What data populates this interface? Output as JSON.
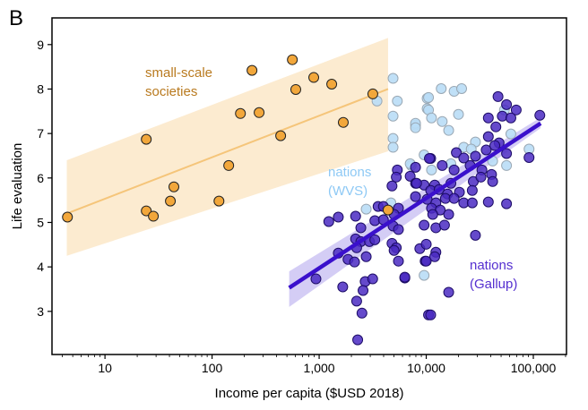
{
  "panel_label": "B",
  "chart_data": {
    "type": "scatter",
    "xlabel": "Income per capita ($USD 2018)",
    "ylabel": "Life evaluation",
    "xscale": "log",
    "xlim": [
      3.2,
      204000
    ],
    "ylim": [
      2.03,
      9.6
    ],
    "xticks": [
      10,
      100,
      1000,
      10000,
      100000
    ],
    "xtick_labels": [
      "10",
      "100",
      "1,000",
      "10,000",
      "100,000"
    ],
    "yticks": [
      3,
      4,
      5,
      6,
      7,
      8,
      9
    ],
    "ytick_labels": [
      "3",
      "4",
      "5",
      "6",
      "7",
      "8",
      "9"
    ],
    "grid": false,
    "series": [
      {
        "name": "small-scale societies",
        "label_lines": [
          "small-scale",
          "societies"
        ],
        "color": "#f2a73b",
        "label_color": "#b97a1f",
        "points": [
          [
            4.46,
            5.12
          ],
          [
            24.3,
            6.87
          ],
          [
            24.3,
            5.26
          ],
          [
            28.3,
            5.14
          ],
          [
            40.8,
            5.48
          ],
          [
            44,
            5.8
          ],
          [
            116,
            5.48
          ],
          [
            143,
            6.28
          ],
          [
            184,
            7.45
          ],
          [
            236,
            8.42
          ],
          [
            275,
            7.47
          ],
          [
            437,
            6.95
          ],
          [
            562,
            8.66
          ],
          [
            605,
            7.99
          ],
          [
            890,
            8.26
          ],
          [
            1310,
            8.11
          ],
          [
            1680,
            7.25
          ],
          [
            3170,
            7.89
          ],
          [
            4400,
            5.28
          ]
        ],
        "fit": {
          "x": [
            4.4,
            4400
          ],
          "y": [
            5.2,
            8.0
          ],
          "lower": [
            4.25,
            6.6
          ],
          "upper": [
            6.4,
            9.15
          ]
        }
      },
      {
        "name": "nations (WVS)",
        "label_lines": [
          "nations",
          "(WVS)"
        ],
        "color": "#b9ddf6",
        "label_color": "#8ec9f5",
        "points": [
          [
            4900,
            8.24
          ],
          [
            5370,
            7.73
          ],
          [
            3470,
            7.73
          ],
          [
            4900,
            7.39
          ],
          [
            4900,
            6.89
          ],
          [
            4900,
            6.69
          ],
          [
            7940,
            7.19
          ],
          [
            9550,
            6.52
          ],
          [
            7240,
            6.28
          ],
          [
            4680,
            5.44
          ],
          [
            2750,
            5.3
          ],
          [
            9550,
            3.81
          ],
          [
            10200,
            7.79
          ],
          [
            10200,
            7.56
          ],
          [
            13800,
            8.01
          ],
          [
            18200,
            7.95
          ],
          [
            21400,
            8.01
          ],
          [
            10500,
            7.81
          ],
          [
            10500,
            7.53
          ],
          [
            11200,
            7.35
          ],
          [
            14100,
            7.27
          ],
          [
            16200,
            7.07
          ],
          [
            20000,
            7.43
          ],
          [
            7940,
            7.23
          ],
          [
            7940,
            7.13
          ],
          [
            28800,
            6.81
          ],
          [
            22400,
            6.69
          ],
          [
            26300,
            6.65
          ],
          [
            7080,
            6.32
          ],
          [
            11200,
            6.18
          ],
          [
            17000,
            6.32
          ],
          [
            56200,
            6.28
          ],
          [
            41700,
            6.38
          ],
          [
            91200,
            6.65
          ],
          [
            53700,
            7.53
          ],
          [
            61700,
            6.99
          ]
        ]
      },
      {
        "name": "nations (Gallup)",
        "label_lines": [
          "nations",
          "(Gallup)"
        ],
        "color": "#4a2ac2",
        "label_color": "#5530d0",
        "points": [
          [
            5370,
            6.18
          ],
          [
            5250,
            6.02
          ],
          [
            4790,
            5.82
          ],
          [
            7940,
            6.24
          ],
          [
            7080,
            6.04
          ],
          [
            7940,
            5.88
          ],
          [
            7940,
            5.58
          ],
          [
            9550,
            5.84
          ],
          [
            3550,
            5.36
          ],
          [
            3980,
            5.36
          ],
          [
            5500,
            5.32
          ],
          [
            5010,
            5.18
          ],
          [
            1230,
            5.02
          ],
          [
            1510,
            5.12
          ],
          [
            2190,
            5.14
          ],
          [
            3310,
            5.04
          ],
          [
            3980,
            5.06
          ],
          [
            2450,
            4.88
          ],
          [
            4900,
            4.92
          ],
          [
            5500,
            4.84
          ],
          [
            2190,
            4.63
          ],
          [
            2450,
            4.57
          ],
          [
            2950,
            4.57
          ],
          [
            3310,
            4.61
          ],
          [
            2240,
            4.43
          ],
          [
            4790,
            4.53
          ],
          [
            5250,
            4.43
          ],
          [
            5010,
            4.37
          ],
          [
            1510,
            4.31
          ],
          [
            1860,
            4.17
          ],
          [
            2140,
            4.11
          ],
          [
            2750,
            4.23
          ],
          [
            5500,
            4.13
          ],
          [
            9770,
            4.13
          ],
          [
            933,
            3.73
          ],
          [
            1660,
            3.55
          ],
          [
            2690,
            3.67
          ],
          [
            3160,
            3.73
          ],
          [
            6310,
            3.75
          ],
          [
            2570,
            3.47
          ],
          [
            2240,
            3.23
          ],
          [
            2510,
            2.96
          ],
          [
            2290,
            2.36
          ],
          [
            10500,
            2.92
          ],
          [
            11000,
            6.44
          ],
          [
            46800,
            7.83
          ],
          [
            56200,
            7.65
          ],
          [
            69200,
            7.53
          ],
          [
            38000,
            7.35
          ],
          [
            51300,
            7.39
          ],
          [
            61700,
            7.35
          ],
          [
            115000,
            7.41
          ],
          [
            44700,
            7.15
          ],
          [
            38000,
            6.93
          ],
          [
            47900,
            6.79
          ],
          [
            91200,
            6.46
          ],
          [
            19100,
            6.57
          ],
          [
            22400,
            6.45
          ],
          [
            28800,
            6.49
          ],
          [
            36300,
            6.63
          ],
          [
            43700,
            6.73
          ],
          [
            56200,
            6.55
          ],
          [
            10700,
            6.44
          ],
          [
            14100,
            6.28
          ],
          [
            18200,
            6.18
          ],
          [
            25700,
            6.28
          ],
          [
            33100,
            6.18
          ],
          [
            40700,
            6.08
          ],
          [
            27500,
            5.92
          ],
          [
            32400,
            6.02
          ],
          [
            17000,
            5.88
          ],
          [
            41700,
            5.92
          ],
          [
            8130,
            5.88
          ],
          [
            12000,
            5.84
          ],
          [
            11000,
            5.72
          ],
          [
            13200,
            5.74
          ],
          [
            15800,
            5.64
          ],
          [
            20400,
            5.68
          ],
          [
            26900,
            5.72
          ],
          [
            10200,
            5.52
          ],
          [
            12300,
            5.44
          ],
          [
            15100,
            5.54
          ],
          [
            18200,
            5.54
          ],
          [
            22400,
            5.44
          ],
          [
            26900,
            5.44
          ],
          [
            38000,
            5.46
          ],
          [
            56200,
            5.42
          ],
          [
            11200,
            5.32
          ],
          [
            13500,
            5.28
          ],
          [
            11500,
            5.18
          ],
          [
            16200,
            5.18
          ],
          [
            9550,
            4.94
          ],
          [
            12300,
            4.88
          ],
          [
            14800,
            4.94
          ],
          [
            28800,
            4.71
          ],
          [
            8710,
            4.41
          ],
          [
            10000,
            4.51
          ],
          [
            12300,
            4.33
          ],
          [
            12000,
            4.23
          ],
          [
            10000,
            4.13
          ],
          [
            6310,
            3.77
          ],
          [
            16200,
            3.43
          ],
          [
            11000,
            2.92
          ]
        ],
        "fit": {
          "x": [
            525,
            117000
          ],
          "y": [
            3.53,
            7.23
          ],
          "lower": [
            3.1,
            7.12
          ],
          "upper": [
            3.9,
            7.36
          ]
        }
      }
    ]
  }
}
